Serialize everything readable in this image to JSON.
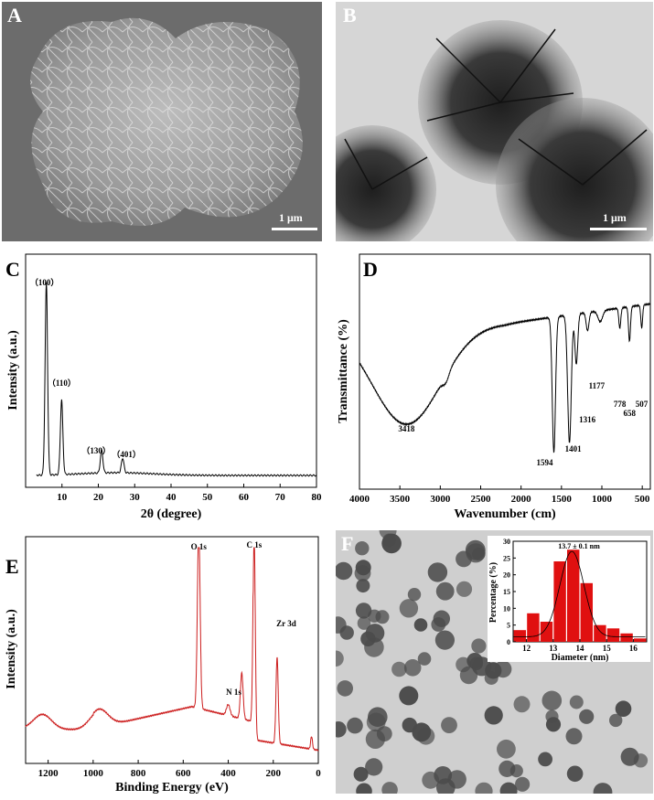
{
  "panels": {
    "A": {
      "letter": "A",
      "scale": "1 μm"
    },
    "B": {
      "letter": "B",
      "scale": "1 μm"
    },
    "C": {
      "letter": "C"
    },
    "D": {
      "letter": "D"
    },
    "E": {
      "letter": "E"
    },
    "F": {
      "letter": "F"
    }
  },
  "colors": {
    "xps_line": "#cc1e1e",
    "bar_fill": "#e01010",
    "fit_line": "#000000"
  },
  "chart_data": [
    {
      "id": "C",
      "type": "line",
      "xlabel": "2θ (degree)",
      "ylabel": "Intensity (a.u.)",
      "xlim": [
        0,
        80
      ],
      "xticks": [
        10,
        20,
        30,
        40,
        50,
        60,
        70,
        80
      ],
      "peaks": [
        {
          "x": 5.7,
          "label": "（100）"
        },
        {
          "x": 9.9,
          "label": "（110）"
        },
        {
          "x": 20.9,
          "label": "（130）"
        },
        {
          "x": 26.7,
          "label": "（401）"
        }
      ],
      "grid": false
    },
    {
      "id": "D",
      "type": "line",
      "xlabel": "Wavenumber (cm)",
      "ylabel": "Transmittance (%)",
      "xlim": [
        4000,
        400
      ],
      "xticks": [
        4000,
        3500,
        3000,
        2500,
        2000,
        1500,
        1000,
        500
      ],
      "peaks": [
        {
          "x": 3418,
          "label": "3418"
        },
        {
          "x": 1594,
          "label": "1594"
        },
        {
          "x": 1401,
          "label": "1401"
        },
        {
          "x": 1316,
          "label": "1316"
        },
        {
          "x": 1177,
          "label": "1177"
        },
        {
          "x": 778,
          "label": "778"
        },
        {
          "x": 658,
          "label": "658"
        },
        {
          "x": 507,
          "label": "507"
        }
      ],
      "grid": false
    },
    {
      "id": "E",
      "type": "line",
      "xlabel": "Binding Energy (eV)",
      "ylabel": "Intensity (a.u.)",
      "xlim": [
        1300,
        0
      ],
      "xticks": [
        1200,
        1000,
        800,
        600,
        400,
        200,
        0
      ],
      "peaks": [
        {
          "x": 531,
          "label": "O 1s"
        },
        {
          "x": 400,
          "label": "N 1s"
        },
        {
          "x": 285,
          "label": "C 1s"
        },
        {
          "x": 183,
          "label": "Zr 3d"
        }
      ],
      "grid": false
    },
    {
      "id": "F-inset",
      "type": "bar",
      "xlabel": "Diameter (nm)",
      "ylabel": "Percentage (%)",
      "annotation": "13.7 ± 0.1 nm",
      "xlim": [
        11.5,
        16.5
      ],
      "ylim": [
        0,
        30
      ],
      "xticks": [
        12,
        13,
        14,
        15,
        16
      ],
      "yticks": [
        0,
        5,
        10,
        15,
        20,
        25,
        30
      ],
      "x": [
        11.75,
        12.25,
        12.75,
        13.25,
        13.75,
        14.25,
        14.75,
        15.25,
        15.75,
        16.25
      ],
      "values": [
        3.5,
        8.5,
        6,
        24,
        27.5,
        17.5,
        5,
        4,
        2.5,
        1
      ],
      "grid": false
    }
  ]
}
